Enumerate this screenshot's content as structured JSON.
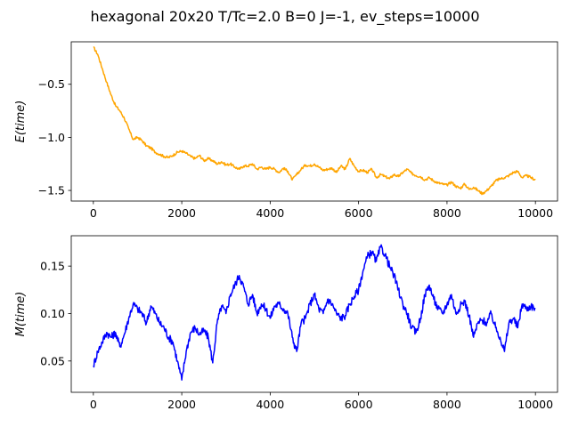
{
  "figure": {
    "title": "hexagonal 20x20 T/Tc=2.0 B=0 J=-1, ev_steps=10000"
  },
  "chart_data": [
    {
      "type": "line",
      "ylabel": "E(time)",
      "xlabel": "",
      "xlim": [
        -500,
        10500
      ],
      "ylim": [
        -1.6,
        -0.1
      ],
      "xticks": [
        0,
        2000,
        4000,
        6000,
        8000,
        10000
      ],
      "xtick_labels": [
        "0",
        "2000",
        "4000",
        "6000",
        "8000",
        "10000"
      ],
      "yticks": [
        -0.5,
        -1.0,
        -1.5
      ],
      "ytick_labels": [
        "−0.5",
        "−1.0",
        "−1.5"
      ],
      "grid": false,
      "color": "#ffa500",
      "series": [
        {
          "x": [
            0,
            100,
            200,
            300,
            400,
            500,
            600,
            700,
            800,
            900,
            1000,
            1100,
            1200,
            1300,
            1400,
            1500,
            1600,
            1700,
            1800,
            1900,
            2000,
            2100,
            2200,
            2300,
            2400,
            2500,
            2600,
            2700,
            2800,
            2900,
            3000,
            3100,
            3200,
            3300,
            3400,
            3500,
            3600,
            3700,
            3800,
            3900,
            4000,
            4100,
            4200,
            4300,
            4400,
            4500,
            4600,
            4700,
            4800,
            4900,
            5000,
            5100,
            5200,
            5300,
            5400,
            5500,
            5600,
            5700,
            5800,
            5900,
            6000,
            6100,
            6200,
            6300,
            6400,
            6500,
            6600,
            6700,
            6800,
            6900,
            7000,
            7100,
            7200,
            7300,
            7400,
            7500,
            7600,
            7700,
            7800,
            7900,
            8000,
            8100,
            8200,
            8300,
            8400,
            8500,
            8600,
            8700,
            8800,
            8900,
            9000,
            9100,
            9200,
            9300,
            9400,
            9500,
            9600,
            9700,
            9800,
            9900,
            10000
          ],
          "values": [
            -0.15,
            -0.22,
            -0.35,
            -0.48,
            -0.6,
            -0.7,
            -0.75,
            -0.82,
            -0.92,
            -1.02,
            -1.0,
            -1.03,
            -1.08,
            -1.1,
            -1.14,
            -1.16,
            -1.18,
            -1.19,
            -1.17,
            -1.14,
            -1.13,
            -1.15,
            -1.18,
            -1.2,
            -1.17,
            -1.22,
            -1.2,
            -1.22,
            -1.25,
            -1.23,
            -1.26,
            -1.25,
            -1.28,
            -1.3,
            -1.27,
            -1.27,
            -1.25,
            -1.3,
            -1.28,
            -1.3,
            -1.28,
            -1.3,
            -1.33,
            -1.29,
            -1.32,
            -1.4,
            -1.35,
            -1.3,
            -1.26,
            -1.27,
            -1.25,
            -1.28,
            -1.31,
            -1.3,
            -1.29,
            -1.33,
            -1.27,
            -1.3,
            -1.2,
            -1.27,
            -1.32,
            -1.31,
            -1.33,
            -1.3,
            -1.38,
            -1.35,
            -1.37,
            -1.39,
            -1.35,
            -1.37,
            -1.33,
            -1.3,
            -1.34,
            -1.36,
            -1.37,
            -1.4,
            -1.38,
            -1.41,
            -1.43,
            -1.44,
            -1.45,
            -1.42,
            -1.46,
            -1.48,
            -1.44,
            -1.49,
            -1.47,
            -1.5,
            -1.53,
            -1.5,
            -1.46,
            -1.41,
            -1.39,
            -1.38,
            -1.36,
            -1.33,
            -1.32,
            -1.38,
            -1.36,
            -1.38,
            -1.4
          ]
        }
      ]
    },
    {
      "type": "line",
      "ylabel": "M(time)",
      "xlabel": "",
      "xlim": [
        -500,
        10500
      ],
      "ylim": [
        0.017,
        0.182
      ],
      "xticks": [
        0,
        2000,
        4000,
        6000,
        8000,
        10000
      ],
      "xtick_labels": [
        "0",
        "2000",
        "4000",
        "6000",
        "8000",
        "10000"
      ],
      "yticks": [
        0.05,
        0.1,
        0.15
      ],
      "ytick_labels": [
        "0.05",
        "0.10",
        "0.15"
      ],
      "grid": false,
      "color": "#0000ff",
      "series": [
        {
          "x": [
            0,
            100,
            200,
            300,
            400,
            500,
            600,
            700,
            800,
            900,
            1000,
            1100,
            1200,
            1300,
            1400,
            1500,
            1600,
            1700,
            1800,
            1900,
            2000,
            2100,
            2200,
            2300,
            2400,
            2500,
            2600,
            2700,
            2800,
            2900,
            3000,
            3100,
            3200,
            3300,
            3400,
            3500,
            3600,
            3700,
            3800,
            3900,
            4000,
            4100,
            4200,
            4300,
            4400,
            4500,
            4600,
            4700,
            4800,
            4900,
            5000,
            5100,
            5200,
            5300,
            5400,
            5500,
            5600,
            5700,
            5800,
            5900,
            6000,
            6100,
            6200,
            6300,
            6400,
            6500,
            6600,
            6700,
            6800,
            6900,
            7000,
            7100,
            7200,
            7300,
            7400,
            7500,
            7600,
            7700,
            7800,
            7900,
            8000,
            8100,
            8200,
            8300,
            8400,
            8500,
            8600,
            8700,
            8800,
            8900,
            9000,
            9100,
            9200,
            9300,
            9400,
            9500,
            9600,
            9700,
            9800,
            9900,
            10000
          ],
          "values": [
            0.045,
            0.06,
            0.07,
            0.08,
            0.075,
            0.08,
            0.065,
            0.078,
            0.095,
            0.11,
            0.105,
            0.1,
            0.09,
            0.108,
            0.1,
            0.09,
            0.085,
            0.075,
            0.07,
            0.05,
            0.03,
            0.06,
            0.08,
            0.085,
            0.078,
            0.082,
            0.075,
            0.048,
            0.09,
            0.108,
            0.1,
            0.12,
            0.13,
            0.14,
            0.128,
            0.11,
            0.12,
            0.1,
            0.11,
            0.105,
            0.095,
            0.108,
            0.11,
            0.105,
            0.1,
            0.075,
            0.06,
            0.09,
            0.095,
            0.11,
            0.12,
            0.105,
            0.1,
            0.115,
            0.11,
            0.1,
            0.095,
            0.098,
            0.11,
            0.118,
            0.125,
            0.145,
            0.16,
            0.165,
            0.155,
            0.17,
            0.162,
            0.15,
            0.14,
            0.125,
            0.11,
            0.1,
            0.085,
            0.08,
            0.095,
            0.12,
            0.13,
            0.115,
            0.105,
            0.1,
            0.11,
            0.12,
            0.1,
            0.108,
            0.113,
            0.098,
            0.075,
            0.09,
            0.093,
            0.09,
            0.1,
            0.085,
            0.075,
            0.06,
            0.09,
            0.095,
            0.085,
            0.11,
            0.105,
            0.108,
            0.105
          ]
        }
      ]
    }
  ]
}
